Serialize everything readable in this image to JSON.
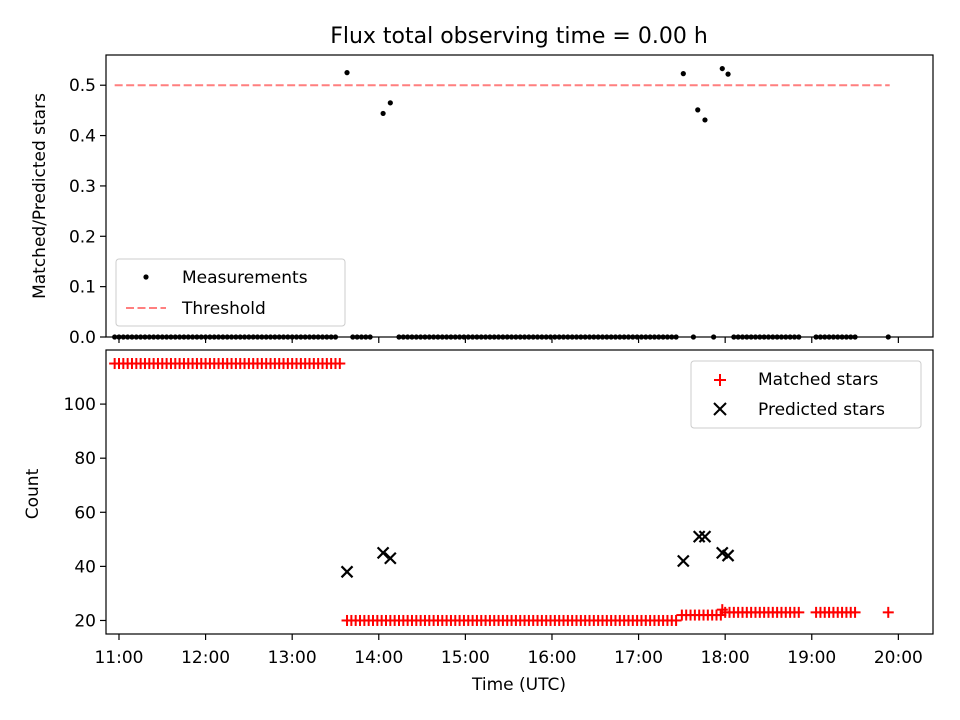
{
  "chart_data": [
    {
      "type": "scatter",
      "title": "Flux total observing time = 0.00 h",
      "xlabel": "",
      "ylabel": "Matched/Predicted stars",
      "xlim": [
        "10:51",
        "20:24"
      ],
      "ylim": [
        0,
        0.56
      ],
      "x_ticks": [
        "11:00",
        "12:00",
        "13:00",
        "14:00",
        "15:00",
        "16:00",
        "17:00",
        "18:00",
        "19:00",
        "20:00"
      ],
      "y_ticks": [
        "0.0",
        "0.1",
        "0.2",
        "0.3",
        "0.4",
        "0.5"
      ],
      "legend_position": "lower-left",
      "series": [
        {
          "name": "Measurements",
          "style": "scatter",
          "color": "#000000",
          "points": [
            {
              "x": "13:38",
              "y": 0.525
            },
            {
              "x": "14:03",
              "y": 0.444
            },
            {
              "x": "14:08",
              "y": 0.465
            },
            {
              "x": "17:31",
              "y": 0.523
            },
            {
              "x": "17:41",
              "y": 0.451
            },
            {
              "x": "17:46",
              "y": 0.431
            },
            {
              "x": "17:58",
              "y": 0.533
            },
            {
              "x": "18:02",
              "y": 0.522
            },
            {
              "x_start": "10:57",
              "x_end": "13:31",
              "step_min": 3,
              "y": 0.0
            },
            {
              "x_start": "13:42",
              "x_end": "13:54",
              "step_min": 3,
              "y": 0.0
            },
            {
              "x_start": "14:14",
              "x_end": "17:27",
              "step_min": 3,
              "y": 0.0
            },
            {
              "x": "17:38",
              "y": 0.0
            },
            {
              "x": "17:52",
              "y": 0.0
            },
            {
              "x_start": "18:06",
              "x_end": "18:51",
              "step_min": 3,
              "y": 0.0
            },
            {
              "x_start": "19:03",
              "x_end": "19:31",
              "step_min": 3,
              "y": 0.0
            },
            {
              "x": "19:53",
              "y": 0.0
            }
          ]
        },
        {
          "name": "Threshold",
          "style": "dashed-line",
          "color": "#ff7f7f",
          "x": [
            "10:57",
            "19:54"
          ],
          "y": [
            0.5,
            0.5
          ]
        }
      ]
    },
    {
      "type": "scatter",
      "title": "",
      "xlabel": "Time (UTC)",
      "ylabel": "Count",
      "xlim": [
        "10:51",
        "20:24"
      ],
      "ylim": [
        15,
        120
      ],
      "x_ticks": [
        "11:00",
        "12:00",
        "13:00",
        "14:00",
        "15:00",
        "16:00",
        "17:00",
        "18:00",
        "19:00",
        "20:00"
      ],
      "y_ticks": [
        "20",
        "40",
        "60",
        "80",
        "100"
      ],
      "legend_position": "top-right",
      "series": [
        {
          "name": "Matched stars",
          "marker": "plus",
          "color": "#ff0000",
          "points": [
            {
              "x_start": "10:57",
              "x_end": "13:33",
              "step_min": 3,
              "y": 115
            },
            {
              "x_start": "13:38",
              "x_end": "17:28",
              "step_min": 3,
              "y": 20
            },
            {
              "x_start": "17:30",
              "x_end": "17:57",
              "step_min": 3,
              "y": 22
            },
            {
              "x": "17:58",
              "y": 24
            },
            {
              "x_start": "18:00",
              "x_end": "18:51",
              "step_min": 3,
              "y": 23
            },
            {
              "x_start": "19:03",
              "x_end": "19:31",
              "step_min": 3,
              "y": 23
            },
            {
              "x": "19:53",
              "y": 23
            }
          ]
        },
        {
          "name": "Predicted stars",
          "marker": "x",
          "color": "#000000",
          "points": [
            {
              "x": "13:38",
              "y": 38
            },
            {
              "x": "14:03",
              "y": 45
            },
            {
              "x": "14:08",
              "y": 43
            },
            {
              "x": "17:31",
              "y": 42
            },
            {
              "x": "17:42",
              "y": 51
            },
            {
              "x": "17:46",
              "y": 51
            },
            {
              "x": "17:58",
              "y": 45
            },
            {
              "x": "18:02",
              "y": 44
            }
          ]
        }
      ]
    }
  ]
}
